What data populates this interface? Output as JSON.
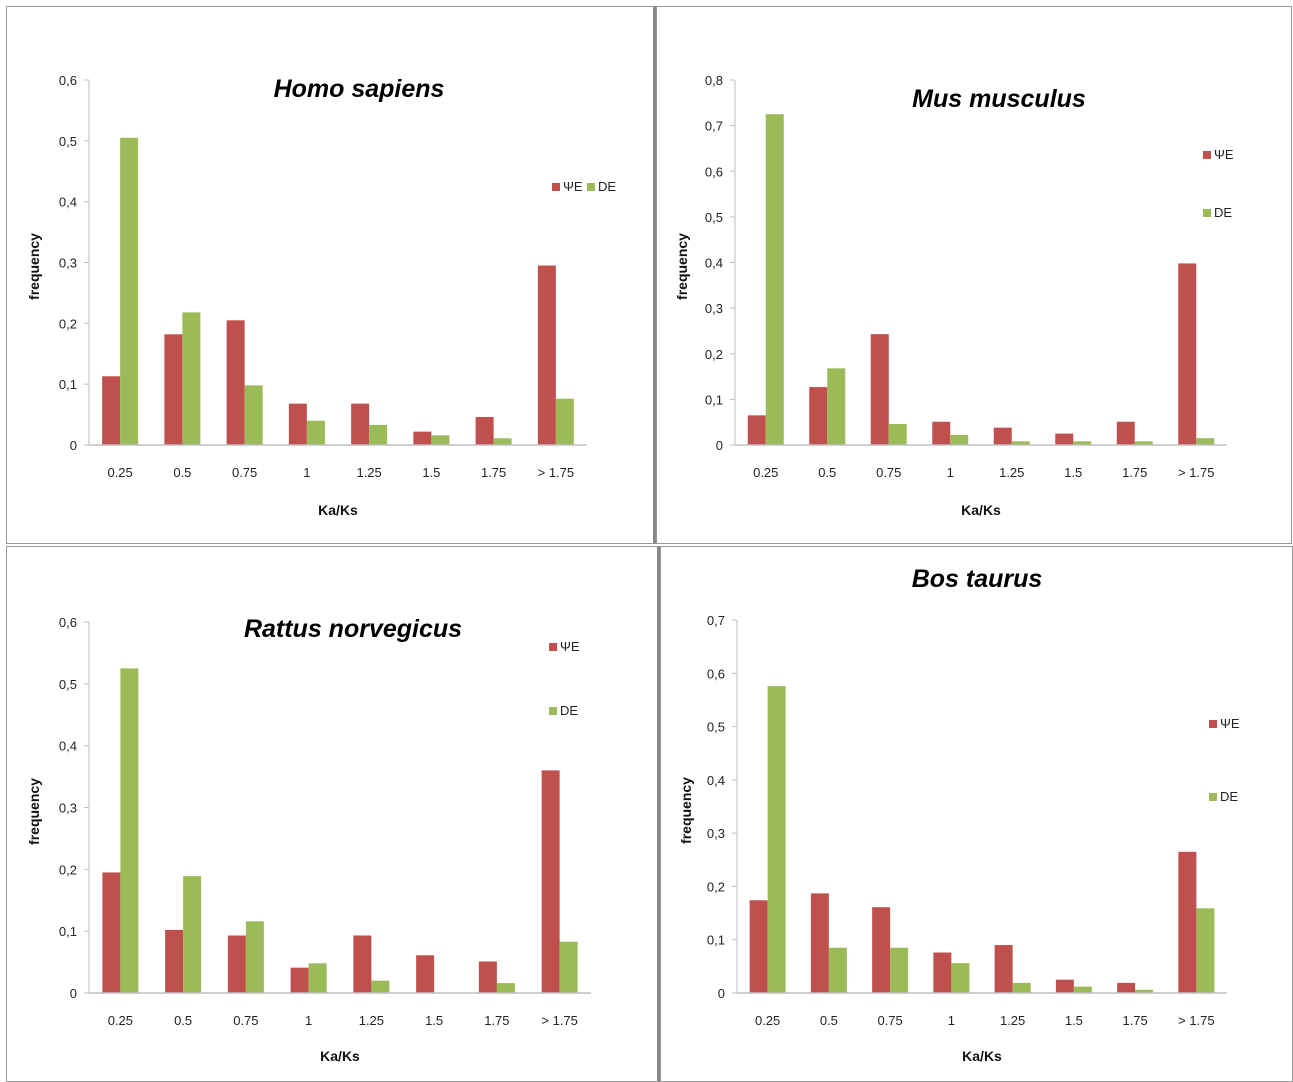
{
  "colors": {
    "psi": "#c0504d",
    "de": "#9bbb59",
    "axis": "#bfbfbf",
    "panel_border": "#888888"
  },
  "chart_data": [
    {
      "type": "bar",
      "title": "Homo sapiens",
      "xlabel": "Ka/Ks",
      "ylabel": "frequency",
      "categories": [
        "0.25",
        "0.5",
        "0.75",
        "1",
        "1.25",
        "1.5",
        "1.75",
        "> 1.75"
      ],
      "ylim": [
        0,
        0.6
      ],
      "yticks": [
        "0",
        "0,1",
        "0,2",
        "0,3",
        "0,4",
        "0,5",
        "0,6"
      ],
      "legend_position": "right-horizontal",
      "series": [
        {
          "name": "ΨE",
          "color": "#c0504d",
          "values": [
            0.113,
            0.182,
            0.205,
            0.068,
            0.068,
            0.022,
            0.046,
            0.295
          ]
        },
        {
          "name": "DE",
          "color": "#9bbb59",
          "values": [
            0.505,
            0.218,
            0.098,
            0.04,
            0.033,
            0.016,
            0.011,
            0.076
          ]
        }
      ]
    },
    {
      "type": "bar",
      "title": "Mus musculus",
      "xlabel": "Ka/Ks",
      "ylabel": "frequency",
      "categories": [
        "0.25",
        "0.5",
        "0.75",
        "1",
        "1.25",
        "1.5",
        "1.75",
        "> 1.75"
      ],
      "ylim": [
        0,
        0.8
      ],
      "yticks": [
        "0",
        "0,1",
        "0,2",
        "0,3",
        "0,4",
        "0,5",
        "0,6",
        "0,7",
        "0,8"
      ],
      "legend_position": "right-vertical",
      "series": [
        {
          "name": "ΨE",
          "color": "#c0504d",
          "values": [
            0.065,
            0.127,
            0.243,
            0.051,
            0.038,
            0.025,
            0.051,
            0.398
          ]
        },
        {
          "name": "DE",
          "color": "#9bbb59",
          "values": [
            0.725,
            0.168,
            0.046,
            0.022,
            0.008,
            0.008,
            0.008,
            0.015
          ]
        }
      ]
    },
    {
      "type": "bar",
      "title": "Rattus norvegicus",
      "xlabel": "Ka/Ks",
      "ylabel": "frequency",
      "categories": [
        "0.25",
        "0.5",
        "0.75",
        "1",
        "1.25",
        "1.5",
        "1.75",
        "> 1.75"
      ],
      "ylim": [
        0,
        0.6
      ],
      "yticks": [
        "0",
        "0,1",
        "0,2",
        "0,3",
        "0,4",
        "0,5",
        "0,6"
      ],
      "legend_position": "right-vertical",
      "series": [
        {
          "name": "ΨE",
          "color": "#c0504d",
          "values": [
            0.195,
            0.102,
            0.093,
            0.041,
            0.093,
            0.061,
            0.051,
            0.36
          ]
        },
        {
          "name": "DE",
          "color": "#9bbb59",
          "values": [
            0.525,
            0.189,
            0.116,
            0.048,
            0.02,
            0.0,
            0.016,
            0.083
          ]
        }
      ]
    },
    {
      "type": "bar",
      "title": "Bos taurus",
      "xlabel": "Ka/Ks",
      "ylabel": "frequency",
      "categories": [
        "0.25",
        "0.5",
        "0.75",
        "1",
        "1.25",
        "1.5",
        "1.75",
        "> 1.75"
      ],
      "ylim": [
        0,
        0.7
      ],
      "yticks": [
        "0",
        "0,1",
        "0,2",
        "0,3",
        "0,4",
        "0,5",
        "0,6",
        "0,7"
      ],
      "legend_position": "right-vertical",
      "series": [
        {
          "name": "ΨE",
          "color": "#c0504d",
          "values": [
            0.174,
            0.187,
            0.161,
            0.076,
            0.09,
            0.025,
            0.019,
            0.265
          ]
        },
        {
          "name": "DE",
          "color": "#9bbb59",
          "values": [
            0.576,
            0.085,
            0.085,
            0.056,
            0.019,
            0.012,
            0.006,
            0.159
          ]
        }
      ]
    }
  ]
}
